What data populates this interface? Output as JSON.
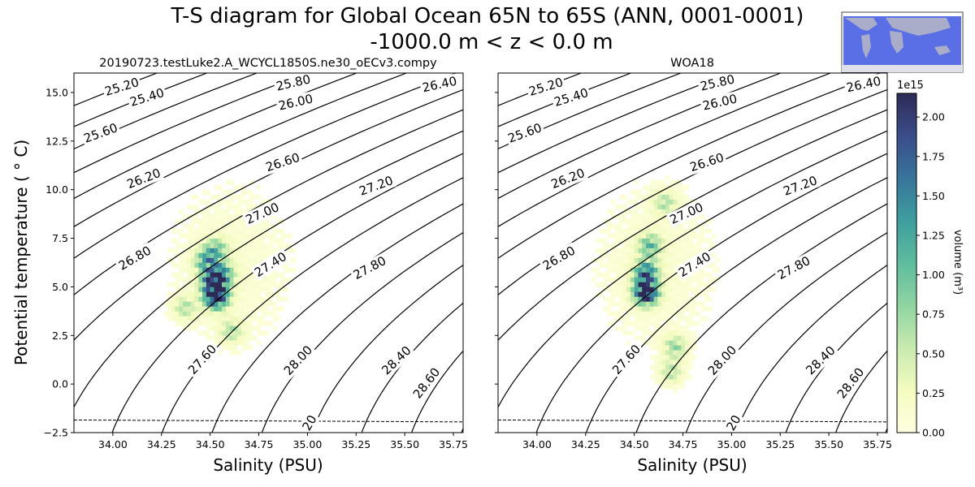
{
  "title_line1": "T-S diagram for Global Ocean 65N to 65S (ANN, 0001-0001)",
  "title_line2": "-1000.0 m < z < 0.0 m",
  "chart_data": [
    {
      "type": "heatmap",
      "title": "20190723.testLuke2.A_WCYCL1850S.ne30_oECv3.compy",
      "xlabel": "Salinity (PSU)",
      "ylabel": "Potential temperature ($^\\circ$C)",
      "ylabel_display": "Potential temperature ( ° C)",
      "xlim": [
        33.8,
        35.8
      ],
      "ylim": [
        -2.5,
        16.0
      ],
      "xticks": [
        "34.00",
        "34.25",
        "34.50",
        "34.75",
        "35.00",
        "35.25",
        "35.50",
        "35.75"
      ],
      "yticks": [
        "−2.5",
        "0.0",
        "2.5",
        "5.0",
        "7.5",
        "10.0",
        "12.5",
        "15.0"
      ],
      "freezing_line_temp": [
        -1.85,
        -1.95
      ],
      "hotspots": [
        {
          "s": 34.52,
          "t": 4.4,
          "value": 2.1
        },
        {
          "s": 34.5,
          "t": 5.2,
          "value": 1.2
        },
        {
          "s": 34.47,
          "t": 6.2,
          "value": 0.9
        },
        {
          "s": 34.52,
          "t": 6.8,
          "value": 0.7
        },
        {
          "s": 34.55,
          "t": 5.5,
          "value": 1.0
        },
        {
          "s": 34.6,
          "t": 2.6,
          "value": 0.5
        },
        {
          "s": 34.36,
          "t": 3.8,
          "value": 0.5
        }
      ]
    },
    {
      "type": "heatmap",
      "title": "WOA18",
      "xlabel": "Salinity (PSU)",
      "xlim": [
        33.8,
        35.8
      ],
      "ylim": [
        -2.5,
        16.0
      ],
      "xticks": [
        "34.00",
        "34.25",
        "34.50",
        "34.75",
        "35.00",
        "35.25",
        "35.50",
        "35.75"
      ],
      "freezing_line_temp": [
        -1.85,
        -1.95
      ],
      "hotspots": [
        {
          "s": 34.55,
          "t": 4.6,
          "value": 2.1
        },
        {
          "s": 34.55,
          "t": 5.6,
          "value": 1.3
        },
        {
          "s": 34.57,
          "t": 7.0,
          "value": 0.8
        },
        {
          "s": 34.65,
          "t": 9.2,
          "value": 0.5
        },
        {
          "s": 34.7,
          "t": 1.8,
          "value": 0.6
        },
        {
          "s": 34.68,
          "t": 0.5,
          "value": 0.5
        }
      ]
    }
  ],
  "density_contours": [
    "25.20",
    "25.40",
    "25.60",
    "25.80",
    "26.00",
    "26.20",
    "26.40",
    "26.60",
    "26.80",
    "27.00",
    "27.20",
    "27.40",
    "27.60",
    "27.80",
    "28.00",
    "28.40",
    "28.60"
  ],
  "contour_extra_label": "20",
  "colorbar": {
    "label": "volume (m$^3$)",
    "label_display": "volume (m³)",
    "exponent": "1e15",
    "ticks": [
      "0.00",
      "0.25",
      "0.50",
      "0.75",
      "1.00",
      "1.25",
      "1.50",
      "1.75",
      "2.00"
    ],
    "range": [
      0.0,
      2.15
    ],
    "cmap": [
      "#ffffe0",
      "#f4fbc0",
      "#c8eab0",
      "#8fd4a0",
      "#5ebc9e",
      "#3e9e9e",
      "#38749a",
      "#3a4d8a",
      "#2d2b55"
    ]
  },
  "colors": {
    "contour": "#000000",
    "map_ocean": "#5a6ee6",
    "map_land": "#b8b8c4"
  }
}
